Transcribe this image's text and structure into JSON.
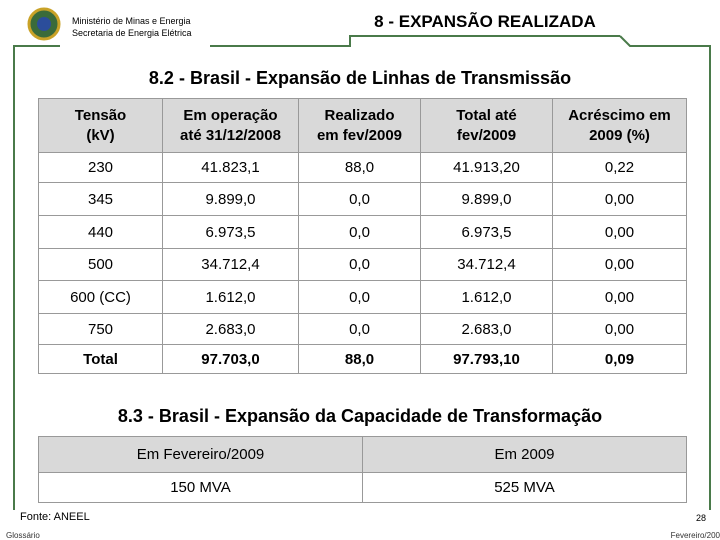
{
  "header": {
    "ministry": "Ministério de Minas e Energia",
    "secretariat": "Secretaria de Energia Elétrica",
    "title": "8 - EXPANSÃO REALIZADA"
  },
  "transmission": {
    "title": "8.2 - Brasil - Expansão de Linhas de Transmissão",
    "columns": [
      [
        "Tensão",
        "(kV)"
      ],
      [
        "Em operação",
        "até 31/12/2008"
      ],
      [
        "Realizado",
        "em fev/2009"
      ],
      [
        "Total até",
        "fev/2009"
      ],
      [
        "Acréscimo em",
        "2009 (%)"
      ]
    ],
    "rows": [
      [
        "230",
        "41.823,1",
        "88,0",
        "41.913,20",
        "0,22"
      ],
      [
        "345",
        "9.899,0",
        "0,0",
        "9.899,0",
        "0,00"
      ],
      [
        "440",
        "6.973,5",
        "0,0",
        "6.973,5",
        "0,00"
      ],
      [
        "500",
        "34.712,4",
        "0,0",
        "34.712,4",
        "0,00"
      ],
      [
        "600 (CC)",
        "1.612,0",
        "0,0",
        "1.612,0",
        "0,00"
      ],
      [
        "750",
        "2.683,0",
        "0,0",
        "2.683,0",
        "0,00"
      ],
      [
        "Total",
        "97.703,0",
        "88,0",
        "97.793,10",
        "0,09"
      ]
    ]
  },
  "transformation": {
    "title": "8.3 - Brasil - Expansão da Capacidade de Transformação",
    "columns": [
      "Em Fevereiro/2009",
      "Em 2009"
    ],
    "rows": [
      [
        "150 MVA",
        "525 MVA"
      ]
    ]
  },
  "footer": {
    "source": "Fonte: ANEEL",
    "glossary": "Glossário",
    "page": "28",
    "date": "Fevereiro/200"
  }
}
